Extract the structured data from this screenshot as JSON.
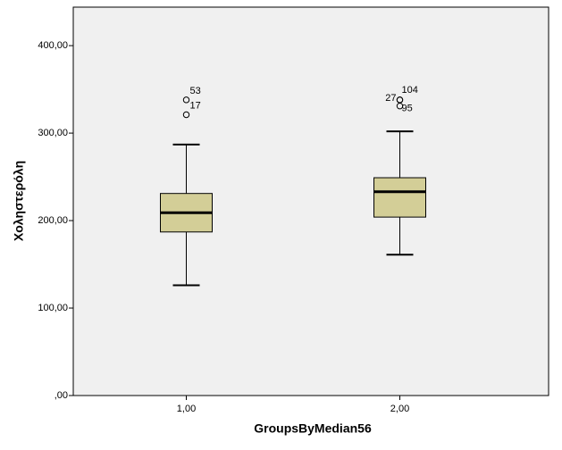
{
  "chart_data": {
    "type": "box",
    "x_label": "GroupsByMedian56",
    "y_label": "Χοληστερόλη",
    "categories": [
      "1,00",
      "2,00"
    ],
    "color": "#d3ce97",
    "ylim": [
      0,
      444
    ],
    "yticks": [
      {
        "value": 0,
        "label": ",00"
      },
      {
        "value": 100,
        "label": "100,00"
      },
      {
        "value": 200,
        "label": "200,00"
      },
      {
        "value": 300,
        "label": "300,00"
      },
      {
        "value": 400,
        "label": "400,00"
      }
    ],
    "boxes": [
      {
        "whisker_low": 126,
        "q1": 187,
        "median": 209,
        "q3": 231,
        "whisker_high": 287,
        "outliers": [
          {
            "value": 338,
            "label": "53"
          },
          {
            "value": 321,
            "label": "17"
          }
        ]
      },
      {
        "whisker_low": 161,
        "q1": 204,
        "median": 233,
        "q3": 249,
        "whisker_high": 302,
        "outliers": [
          {
            "value": 338,
            "label": "104"
          },
          {
            "value": 338,
            "label": "27"
          },
          {
            "value": 331,
            "label": "95"
          }
        ]
      }
    ]
  }
}
